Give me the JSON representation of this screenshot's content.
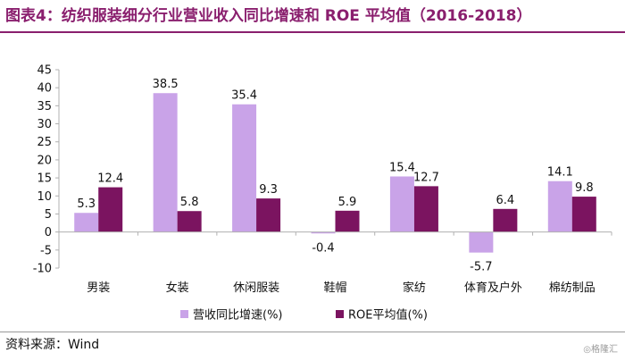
{
  "page": {
    "title": "图表4：纺织服装细分行业营业收入同比增速和 ROE 平均值（2016-2018）",
    "source": "资料来源：Wind",
    "watermark": "◎格隆汇"
  },
  "colors": {
    "title": "#8a1f6e",
    "series_revenue": "#c9a3e8",
    "series_roe": "#7b1460",
    "axis": "#b0b0b0"
  },
  "chart_data": {
    "type": "bar",
    "title": "",
    "xlabel": "",
    "ylabel": "",
    "ylim": [
      -10,
      45
    ],
    "yticks": [
      -10,
      -5,
      0,
      5,
      10,
      15,
      20,
      25,
      30,
      35,
      40,
      45
    ],
    "grid": false,
    "legend_position": "bottom-center",
    "categories": [
      "男装",
      "女装",
      "休闲服装",
      "鞋帽",
      "家纺",
      "体育及户外",
      "棉纺制品"
    ],
    "series": [
      {
        "name": "营收同比增速(%)",
        "color": "#c9a3e8",
        "values": [
          5.3,
          38.5,
          35.4,
          -0.4,
          15.4,
          -5.7,
          14.1
        ]
      },
      {
        "name": "ROE平均值(%)",
        "color": "#7b1460",
        "values": [
          12.4,
          5.8,
          9.3,
          5.9,
          12.7,
          6.4,
          9.8
        ]
      }
    ]
  }
}
